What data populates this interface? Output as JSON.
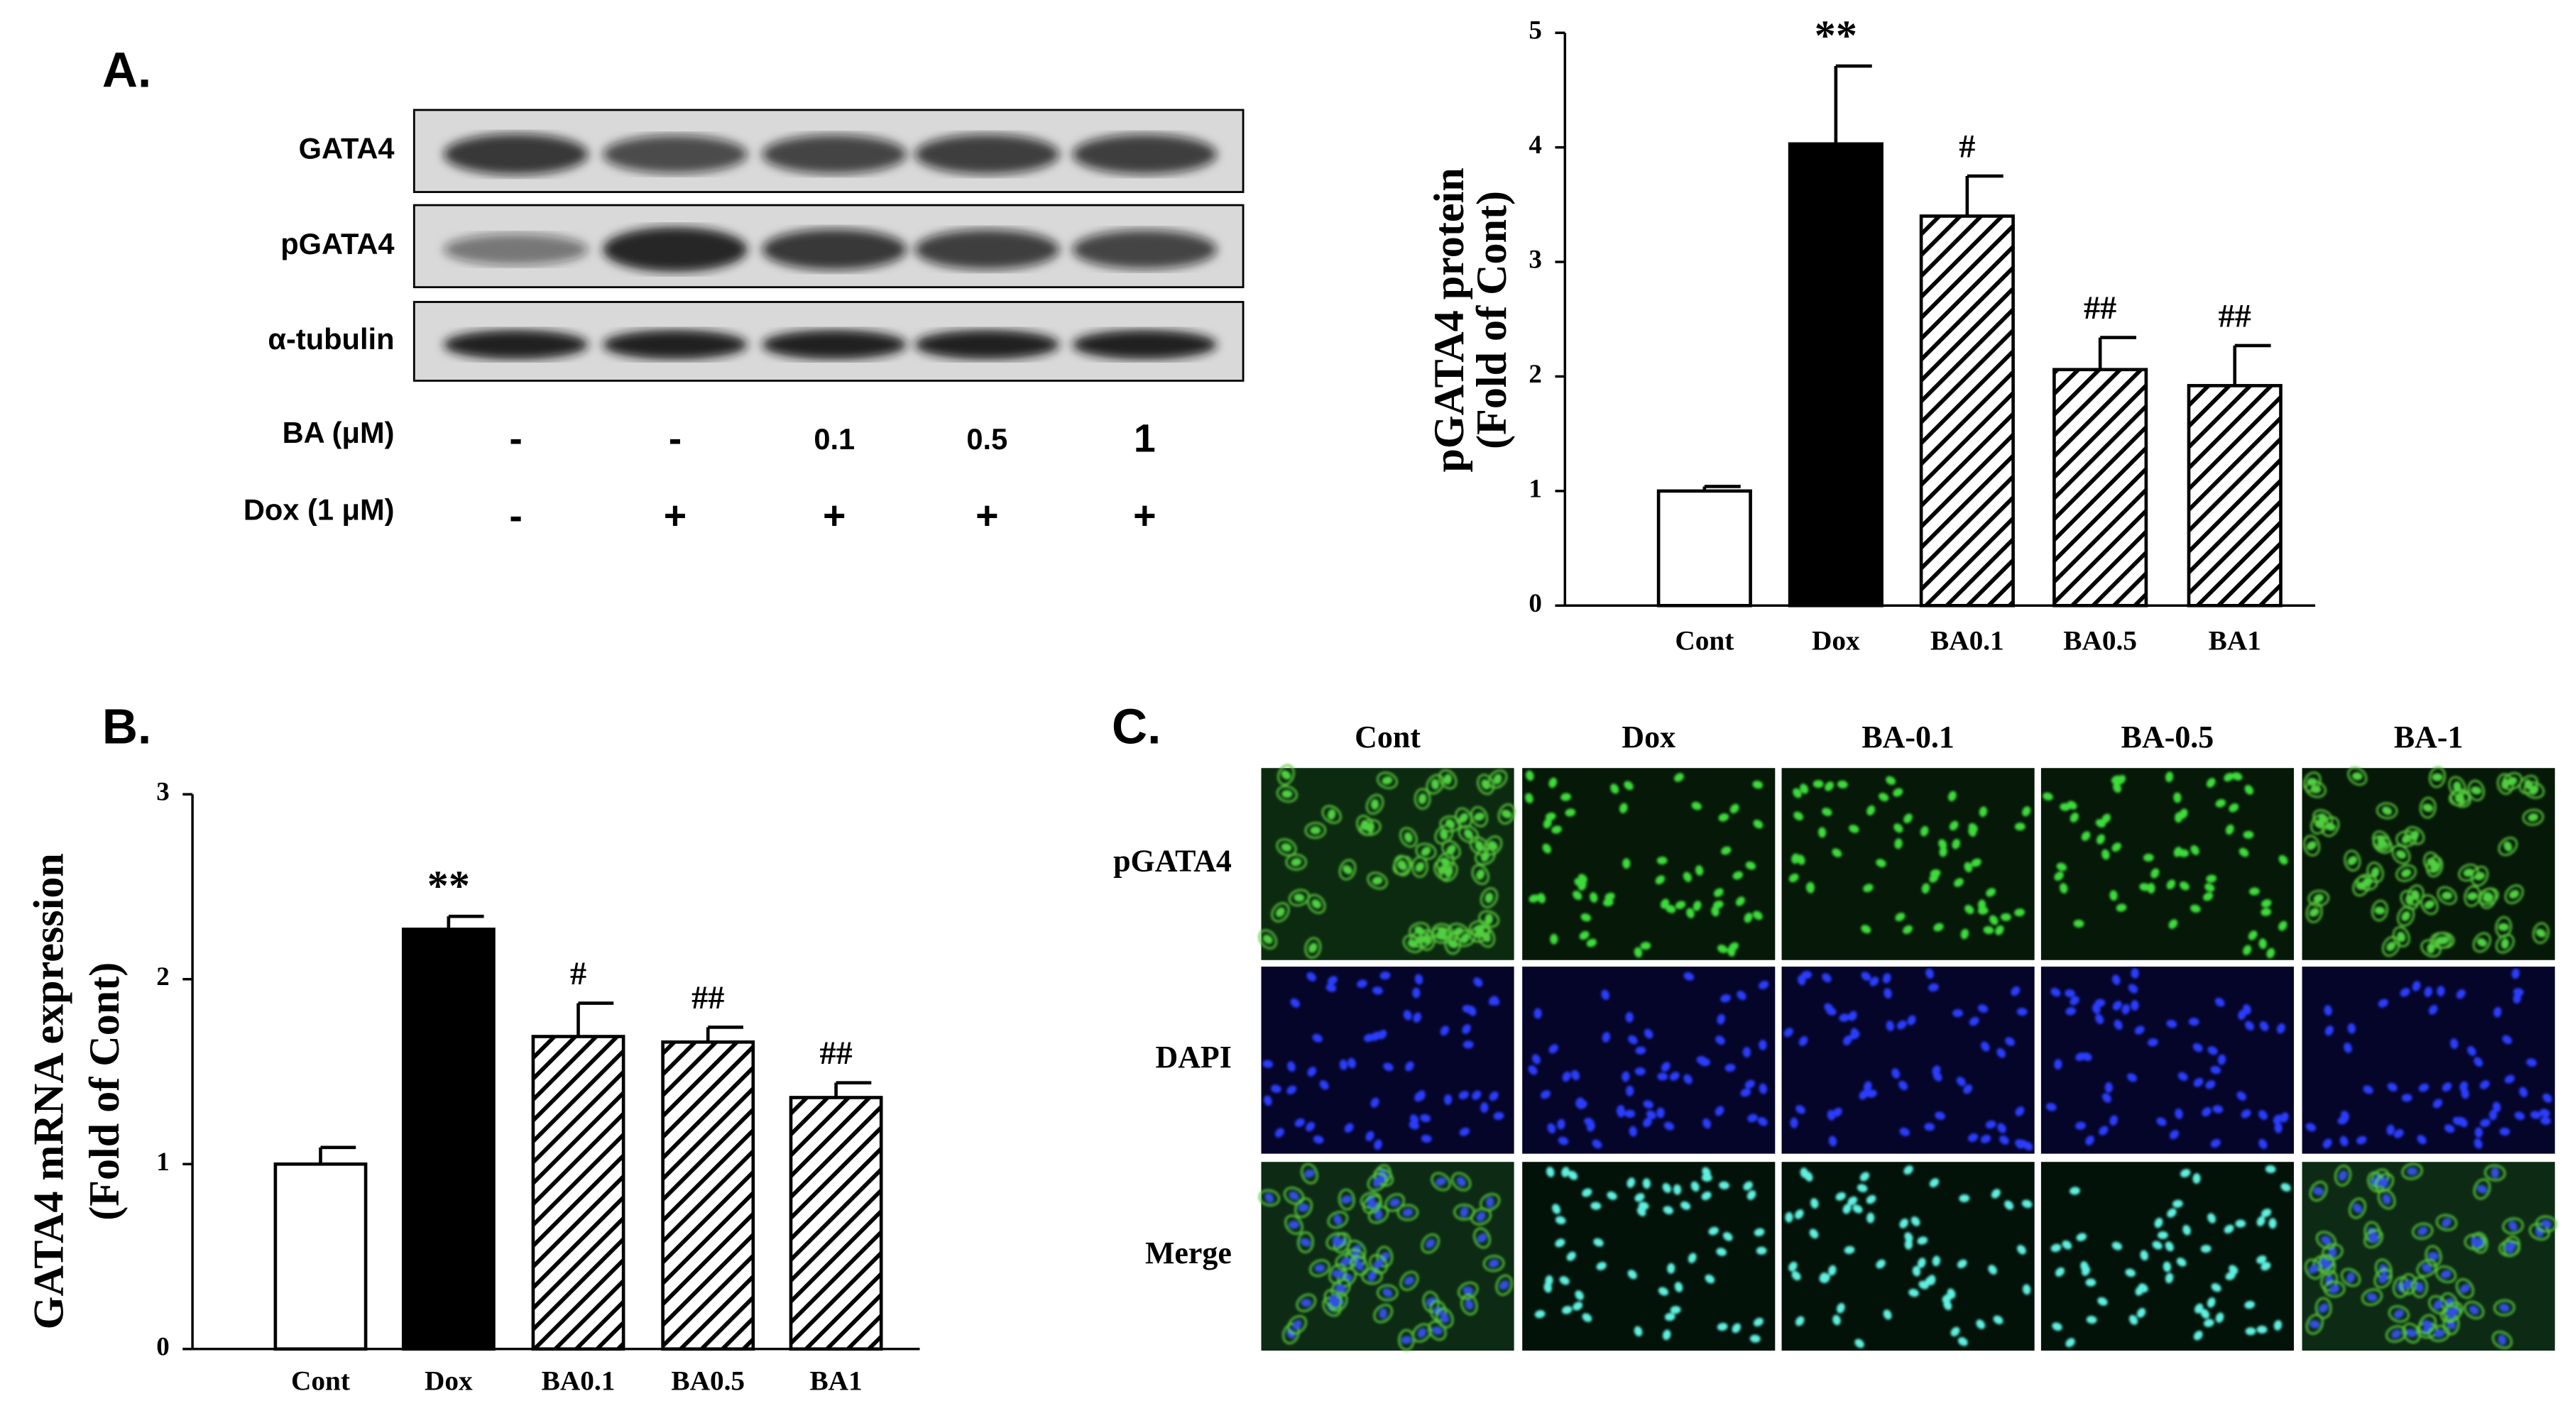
{
  "panels": {
    "a": "A.",
    "b": "B.",
    "c": "C."
  },
  "blot": {
    "rows": [
      "GATA4",
      "pGATA4",
      "α-tubulin"
    ],
    "treatments": [
      {
        "label": "BA (μM)",
        "lanes": [
          "-",
          "-",
          "0.1",
          "0.5",
          "1"
        ]
      },
      {
        "label": "Dox (1 μM)",
        "lanes": [
          "-",
          "+",
          "+",
          "+",
          "+"
        ]
      }
    ]
  },
  "microscopy": {
    "columns": [
      "Cont",
      "Dox",
      "BA-0.1",
      "BA-0.5",
      "BA-1"
    ],
    "rows": [
      "pGATA4",
      "DAPI",
      "Merge"
    ]
  },
  "chart_data": [
    {
      "type": "bar",
      "y_label": [
        "pGATA4 protein",
        "(Fold of Cont)"
      ],
      "categories": [
        "Cont",
        "Dox",
        "BA0.1",
        "BA0.5",
        "BA1"
      ],
      "values": [
        1.0,
        4.03,
        3.4,
        2.06,
        1.92
      ],
      "errors": [
        0.04,
        0.68,
        0.35,
        0.28,
        0.35
      ],
      "annotations": [
        null,
        "**",
        "#",
        "##",
        "##"
      ],
      "bar_styles": [
        "open",
        "solid",
        "hatched",
        "hatched",
        "hatched"
      ],
      "ylim": [
        0,
        5
      ],
      "yticks": [
        0,
        1,
        2,
        3,
        4,
        5
      ]
    },
    {
      "type": "bar",
      "y_label": [
        "GATA4 mRNA expression",
        "(Fold of Cont)"
      ],
      "categories": [
        "Cont",
        "Dox",
        "BA0.1",
        "BA0.5",
        "BA1"
      ],
      "values": [
        1.0,
        2.27,
        1.69,
        1.66,
        1.36
      ],
      "errors": [
        0.09,
        0.07,
        0.18,
        0.08,
        0.08
      ],
      "annotations": [
        null,
        "**",
        "#",
        "##",
        "##"
      ],
      "bar_styles": [
        "open",
        "solid",
        "hatched",
        "hatched",
        "hatched"
      ],
      "ylim": [
        0,
        3
      ],
      "yticks": [
        0,
        1,
        2,
        3
      ]
    }
  ]
}
